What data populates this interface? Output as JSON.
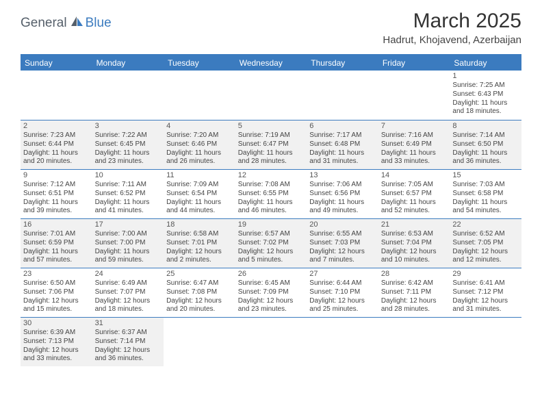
{
  "logo": {
    "part1": "General",
    "part2": "Blue"
  },
  "title": "March 2025",
  "location": "Hadrut, Khojavend, Azerbaijan",
  "colors": {
    "header_bg": "#3b7bbf",
    "header_text": "#ffffff",
    "shaded_bg": "#f1f1f1",
    "border": "#3b7bbf",
    "page_bg": "#ffffff",
    "logo_gray": "#555f6a",
    "logo_blue": "#3b7bbf"
  },
  "weekdays": [
    "Sunday",
    "Monday",
    "Tuesday",
    "Wednesday",
    "Thursday",
    "Friday",
    "Saturday"
  ],
  "weeks": [
    [
      {
        "blank": true
      },
      {
        "blank": true
      },
      {
        "blank": true
      },
      {
        "blank": true
      },
      {
        "blank": true
      },
      {
        "blank": true
      },
      {
        "num": "1",
        "shaded": false,
        "sunrise": "Sunrise: 7:25 AM",
        "sunset": "Sunset: 6:43 PM",
        "day1": "Daylight: 11 hours",
        "day2": "and 18 minutes."
      }
    ],
    [
      {
        "num": "2",
        "shaded": true,
        "sunrise": "Sunrise: 7:23 AM",
        "sunset": "Sunset: 6:44 PM",
        "day1": "Daylight: 11 hours",
        "day2": "and 20 minutes."
      },
      {
        "num": "3",
        "shaded": true,
        "sunrise": "Sunrise: 7:22 AM",
        "sunset": "Sunset: 6:45 PM",
        "day1": "Daylight: 11 hours",
        "day2": "and 23 minutes."
      },
      {
        "num": "4",
        "shaded": true,
        "sunrise": "Sunrise: 7:20 AM",
        "sunset": "Sunset: 6:46 PM",
        "day1": "Daylight: 11 hours",
        "day2": "and 26 minutes."
      },
      {
        "num": "5",
        "shaded": true,
        "sunrise": "Sunrise: 7:19 AM",
        "sunset": "Sunset: 6:47 PM",
        "day1": "Daylight: 11 hours",
        "day2": "and 28 minutes."
      },
      {
        "num": "6",
        "shaded": true,
        "sunrise": "Sunrise: 7:17 AM",
        "sunset": "Sunset: 6:48 PM",
        "day1": "Daylight: 11 hours",
        "day2": "and 31 minutes."
      },
      {
        "num": "7",
        "shaded": true,
        "sunrise": "Sunrise: 7:16 AM",
        "sunset": "Sunset: 6:49 PM",
        "day1": "Daylight: 11 hours",
        "day2": "and 33 minutes."
      },
      {
        "num": "8",
        "shaded": true,
        "sunrise": "Sunrise: 7:14 AM",
        "sunset": "Sunset: 6:50 PM",
        "day1": "Daylight: 11 hours",
        "day2": "and 36 minutes."
      }
    ],
    [
      {
        "num": "9",
        "shaded": false,
        "sunrise": "Sunrise: 7:12 AM",
        "sunset": "Sunset: 6:51 PM",
        "day1": "Daylight: 11 hours",
        "day2": "and 39 minutes."
      },
      {
        "num": "10",
        "shaded": false,
        "sunrise": "Sunrise: 7:11 AM",
        "sunset": "Sunset: 6:52 PM",
        "day1": "Daylight: 11 hours",
        "day2": "and 41 minutes."
      },
      {
        "num": "11",
        "shaded": false,
        "sunrise": "Sunrise: 7:09 AM",
        "sunset": "Sunset: 6:54 PM",
        "day1": "Daylight: 11 hours",
        "day2": "and 44 minutes."
      },
      {
        "num": "12",
        "shaded": false,
        "sunrise": "Sunrise: 7:08 AM",
        "sunset": "Sunset: 6:55 PM",
        "day1": "Daylight: 11 hours",
        "day2": "and 46 minutes."
      },
      {
        "num": "13",
        "shaded": false,
        "sunrise": "Sunrise: 7:06 AM",
        "sunset": "Sunset: 6:56 PM",
        "day1": "Daylight: 11 hours",
        "day2": "and 49 minutes."
      },
      {
        "num": "14",
        "shaded": false,
        "sunrise": "Sunrise: 7:05 AM",
        "sunset": "Sunset: 6:57 PM",
        "day1": "Daylight: 11 hours",
        "day2": "and 52 minutes."
      },
      {
        "num": "15",
        "shaded": false,
        "sunrise": "Sunrise: 7:03 AM",
        "sunset": "Sunset: 6:58 PM",
        "day1": "Daylight: 11 hours",
        "day2": "and 54 minutes."
      }
    ],
    [
      {
        "num": "16",
        "shaded": true,
        "sunrise": "Sunrise: 7:01 AM",
        "sunset": "Sunset: 6:59 PM",
        "day1": "Daylight: 11 hours",
        "day2": "and 57 minutes."
      },
      {
        "num": "17",
        "shaded": true,
        "sunrise": "Sunrise: 7:00 AM",
        "sunset": "Sunset: 7:00 PM",
        "day1": "Daylight: 11 hours",
        "day2": "and 59 minutes."
      },
      {
        "num": "18",
        "shaded": true,
        "sunrise": "Sunrise: 6:58 AM",
        "sunset": "Sunset: 7:01 PM",
        "day1": "Daylight: 12 hours",
        "day2": "and 2 minutes."
      },
      {
        "num": "19",
        "shaded": true,
        "sunrise": "Sunrise: 6:57 AM",
        "sunset": "Sunset: 7:02 PM",
        "day1": "Daylight: 12 hours",
        "day2": "and 5 minutes."
      },
      {
        "num": "20",
        "shaded": true,
        "sunrise": "Sunrise: 6:55 AM",
        "sunset": "Sunset: 7:03 PM",
        "day1": "Daylight: 12 hours",
        "day2": "and 7 minutes."
      },
      {
        "num": "21",
        "shaded": true,
        "sunrise": "Sunrise: 6:53 AM",
        "sunset": "Sunset: 7:04 PM",
        "day1": "Daylight: 12 hours",
        "day2": "and 10 minutes."
      },
      {
        "num": "22",
        "shaded": true,
        "sunrise": "Sunrise: 6:52 AM",
        "sunset": "Sunset: 7:05 PM",
        "day1": "Daylight: 12 hours",
        "day2": "and 12 minutes."
      }
    ],
    [
      {
        "num": "23",
        "shaded": false,
        "sunrise": "Sunrise: 6:50 AM",
        "sunset": "Sunset: 7:06 PM",
        "day1": "Daylight: 12 hours",
        "day2": "and 15 minutes."
      },
      {
        "num": "24",
        "shaded": false,
        "sunrise": "Sunrise: 6:49 AM",
        "sunset": "Sunset: 7:07 PM",
        "day1": "Daylight: 12 hours",
        "day2": "and 18 minutes."
      },
      {
        "num": "25",
        "shaded": false,
        "sunrise": "Sunrise: 6:47 AM",
        "sunset": "Sunset: 7:08 PM",
        "day1": "Daylight: 12 hours",
        "day2": "and 20 minutes."
      },
      {
        "num": "26",
        "shaded": false,
        "sunrise": "Sunrise: 6:45 AM",
        "sunset": "Sunset: 7:09 PM",
        "day1": "Daylight: 12 hours",
        "day2": "and 23 minutes."
      },
      {
        "num": "27",
        "shaded": false,
        "sunrise": "Sunrise: 6:44 AM",
        "sunset": "Sunset: 7:10 PM",
        "day1": "Daylight: 12 hours",
        "day2": "and 25 minutes."
      },
      {
        "num": "28",
        "shaded": false,
        "sunrise": "Sunrise: 6:42 AM",
        "sunset": "Sunset: 7:11 PM",
        "day1": "Daylight: 12 hours",
        "day2": "and 28 minutes."
      },
      {
        "num": "29",
        "shaded": false,
        "sunrise": "Sunrise: 6:41 AM",
        "sunset": "Sunset: 7:12 PM",
        "day1": "Daylight: 12 hours",
        "day2": "and 31 minutes."
      }
    ],
    [
      {
        "num": "30",
        "shaded": true,
        "sunrise": "Sunrise: 6:39 AM",
        "sunset": "Sunset: 7:13 PM",
        "day1": "Daylight: 12 hours",
        "day2": "and 33 minutes."
      },
      {
        "num": "31",
        "shaded": true,
        "sunrise": "Sunrise: 6:37 AM",
        "sunset": "Sunset: 7:14 PM",
        "day1": "Daylight: 12 hours",
        "day2": "and 36 minutes."
      },
      {
        "blank": true
      },
      {
        "blank": true
      },
      {
        "blank": true
      },
      {
        "blank": true
      },
      {
        "blank": true
      }
    ]
  ]
}
